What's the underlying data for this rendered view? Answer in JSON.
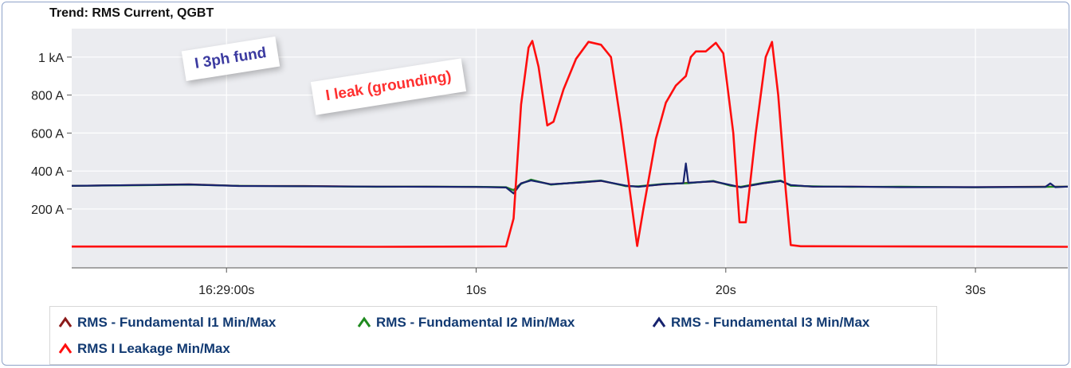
{
  "window": {
    "title": "Trend: RMS Current, QGBT"
  },
  "annotations": [
    {
      "id": "note-fund",
      "text": "I 3ph fund",
      "color": "#3b3aa0"
    },
    {
      "id": "note-leak",
      "text": "I leak (grounding)",
      "color": "#ff2a2a"
    }
  ],
  "colors": {
    "background": "#ebecf0",
    "grid": "#ffffff",
    "border": "#8fa3c9"
  },
  "chart_data": {
    "type": "line",
    "title": "Trend: RMS Current, QGBT",
    "x_unit": "seconds after 16:29:00",
    "xlim": [
      -6.2,
      33.7
    ],
    "ylim": [
      -110,
      1150
    ],
    "x_ticks": [
      {
        "value": 0,
        "label": "16:29:00s"
      },
      {
        "value": 10,
        "label": "10s"
      },
      {
        "value": 20,
        "label": "20s"
      },
      {
        "value": 30,
        "label": "30s"
      }
    ],
    "y_ticks": [
      {
        "value": 200,
        "label": "200 A"
      },
      {
        "value": 400,
        "label": "400 A"
      },
      {
        "value": 600,
        "label": "600 A"
      },
      {
        "value": 800,
        "label": "800 A"
      },
      {
        "value": 1000,
        "label": "1 kA"
      }
    ],
    "grid": true,
    "legend_position": "bottom",
    "series": [
      {
        "name": "RMS - Fundamental I1 Min/Max",
        "color": "#8b1a1a",
        "points": [
          [
            -6.2,
            322
          ],
          [
            -3.5,
            326
          ],
          [
            -1.5,
            330
          ],
          [
            0.5,
            322
          ],
          [
            3,
            321
          ],
          [
            6,
            318
          ],
          [
            8,
            318
          ],
          [
            10,
            316
          ],
          [
            11.2,
            314
          ],
          [
            11.5,
            300
          ],
          [
            11.8,
            335
          ],
          [
            12.2,
            352
          ],
          [
            13,
            330
          ],
          [
            14.2,
            340
          ],
          [
            15,
            348
          ],
          [
            16,
            322
          ],
          [
            16.5,
            318
          ],
          [
            17.5,
            330
          ],
          [
            18.5,
            338
          ],
          [
            19.5,
            345
          ],
          [
            20.2,
            325
          ],
          [
            20.6,
            315
          ],
          [
            21.5,
            335
          ],
          [
            22.2,
            348
          ],
          [
            22.6,
            325
          ],
          [
            23.5,
            318
          ],
          [
            25,
            318
          ],
          [
            27,
            316
          ],
          [
            30,
            315
          ],
          [
            32.8,
            318
          ],
          [
            33.7,
            318
          ]
        ]
      },
      {
        "name": "RMS - Fundamental I2 Min/Max",
        "color": "#1f8a1f",
        "points": [
          [
            -6.2,
            322
          ],
          [
            -3.5,
            325
          ],
          [
            -1.5,
            328
          ],
          [
            0.5,
            322
          ],
          [
            3,
            320
          ],
          [
            6,
            317
          ],
          [
            8,
            318
          ],
          [
            10,
            317
          ],
          [
            11.2,
            315
          ],
          [
            11.5,
            298
          ],
          [
            11.8,
            332
          ],
          [
            12.2,
            355
          ],
          [
            13,
            328
          ],
          [
            14.2,
            342
          ],
          [
            15,
            350
          ],
          [
            16,
            320
          ],
          [
            16.5,
            320
          ],
          [
            17.5,
            332
          ],
          [
            18.5,
            336
          ],
          [
            19.5,
            348
          ],
          [
            20.2,
            322
          ],
          [
            20.6,
            317
          ],
          [
            21.5,
            338
          ],
          [
            22.2,
            350
          ],
          [
            22.6,
            322
          ],
          [
            23.5,
            320
          ],
          [
            25,
            316
          ],
          [
            27,
            318
          ],
          [
            30,
            314
          ],
          [
            32.8,
            316
          ],
          [
            33.7,
            318
          ]
        ]
      },
      {
        "name": "RMS - Fundamental I3 Min/Max",
        "color": "#16226e",
        "points": [
          [
            -6.2,
            322
          ],
          [
            -3.5,
            326
          ],
          [
            -1.5,
            329
          ],
          [
            0.5,
            321
          ],
          [
            3,
            320
          ],
          [
            6,
            318
          ],
          [
            8,
            317
          ],
          [
            10,
            316
          ],
          [
            11.2,
            313
          ],
          [
            11.5,
            282
          ],
          [
            11.8,
            335
          ],
          [
            12.2,
            350
          ],
          [
            13,
            330
          ],
          [
            14.2,
            340
          ],
          [
            15,
            349
          ],
          [
            16,
            323
          ],
          [
            16.5,
            317
          ],
          [
            17.5,
            331
          ],
          [
            18.3,
            336
          ],
          [
            18.4,
            440
          ],
          [
            18.5,
            338
          ],
          [
            19.5,
            346
          ],
          [
            20.2,
            326
          ],
          [
            20.6,
            314
          ],
          [
            21.5,
            336
          ],
          [
            22.2,
            347
          ],
          [
            22.6,
            326
          ],
          [
            23.5,
            318
          ],
          [
            25,
            318
          ],
          [
            27,
            315
          ],
          [
            30,
            315
          ],
          [
            32.8,
            316
          ],
          [
            33,
            335
          ],
          [
            33.2,
            315
          ],
          [
            33.7,
            318
          ]
        ]
      },
      {
        "name": "RMS I Leakage Min/Max",
        "color": "#ff0e0e",
        "points": [
          [
            -6.2,
            2
          ],
          [
            -2,
            2
          ],
          [
            2,
            2
          ],
          [
            6,
            1
          ],
          [
            10,
            2
          ],
          [
            11.2,
            3
          ],
          [
            11.5,
            150
          ],
          [
            11.8,
            750
          ],
          [
            12.1,
            1050
          ],
          [
            12.25,
            1085
          ],
          [
            12.5,
            950
          ],
          [
            12.85,
            640
          ],
          [
            13.1,
            660
          ],
          [
            13.5,
            830
          ],
          [
            14,
            990
          ],
          [
            14.5,
            1080
          ],
          [
            15,
            1065
          ],
          [
            15.4,
            1000
          ],
          [
            15.8,
            650
          ],
          [
            16.2,
            250
          ],
          [
            16.45,
            5
          ],
          [
            16.7,
            200
          ],
          [
            17.2,
            570
          ],
          [
            17.6,
            760
          ],
          [
            18,
            850
          ],
          [
            18.4,
            900
          ],
          [
            18.6,
            1000
          ],
          [
            18.8,
            1030
          ],
          [
            19.2,
            1030
          ],
          [
            19.6,
            1075
          ],
          [
            19.9,
            1020
          ],
          [
            20.3,
            600
          ],
          [
            20.55,
            130
          ],
          [
            20.8,
            130
          ],
          [
            21.2,
            600
          ],
          [
            21.6,
            1000
          ],
          [
            21.85,
            1080
          ],
          [
            22.1,
            800
          ],
          [
            22.4,
            300
          ],
          [
            22.6,
            10
          ],
          [
            23,
            4
          ],
          [
            26,
            3
          ],
          [
            30,
            2
          ],
          [
            33.7,
            1
          ]
        ]
      }
    ]
  }
}
